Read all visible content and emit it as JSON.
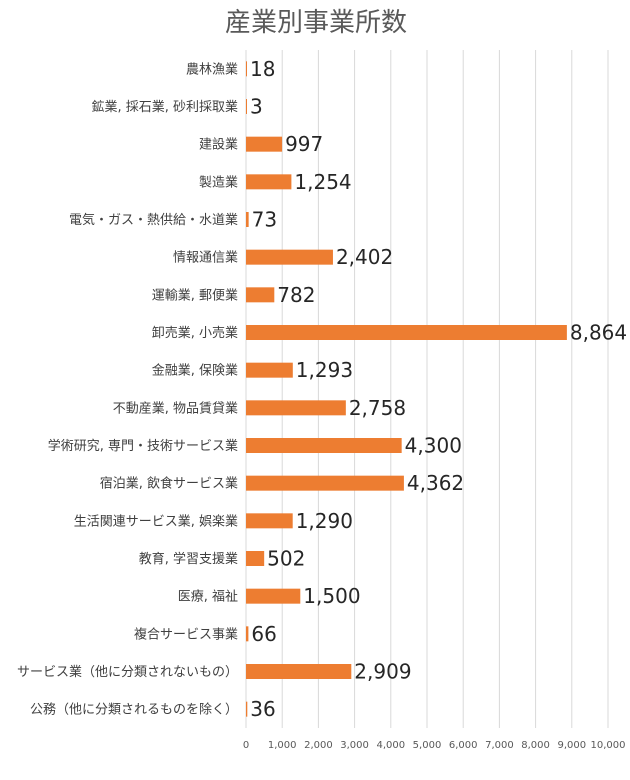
{
  "chart_data": {
    "type": "bar",
    "orientation": "horizontal",
    "title": "産業別事業所数",
    "categories": [
      "農林漁業",
      "鉱業, 採石業, 砂利採取業",
      "建設業",
      "製造業",
      "電気・ガス・熱供給・水道業",
      "情報通信業",
      "運輸業, 郵便業",
      "卸売業, 小売業",
      "金融業, 保険業",
      "不動産業, 物品賃貸業",
      "学術研究, 専門・技術サービス業",
      "宿泊業, 飲食サービス業",
      "生活関連サービス業, 娯楽業",
      "教育, 学習支援業",
      "医療, 福祉",
      "複合サービス事業",
      "サービス業（他に分類されないもの）",
      "公務（他に分類されるものを除く）"
    ],
    "values": [
      18,
      3,
      997,
      1254,
      73,
      2402,
      782,
      8864,
      1293,
      2758,
      4300,
      4362,
      1290,
      502,
      1500,
      66,
      2909,
      36
    ],
    "value_labels": [
      "18",
      "3",
      "997",
      "1,254",
      "73",
      "2,402",
      "782",
      "8,864",
      "1,293",
      "2,758",
      "4,300",
      "4,362",
      "1,290",
      "502",
      "1,500",
      "66",
      "2,909",
      "36"
    ],
    "xlim": [
      0,
      10000
    ],
    "xticks": [
      0,
      1000,
      2000,
      3000,
      4000,
      5000,
      6000,
      7000,
      8000,
      9000,
      10000
    ],
    "xtick_labels": [
      "0",
      "1,000",
      "2,000",
      "3,000",
      "4,000",
      "5,000",
      "6,000",
      "7,000",
      "8,000",
      "9,000",
      "10,000"
    ],
    "bar_color": "#ed7d31",
    "grid": true
  }
}
